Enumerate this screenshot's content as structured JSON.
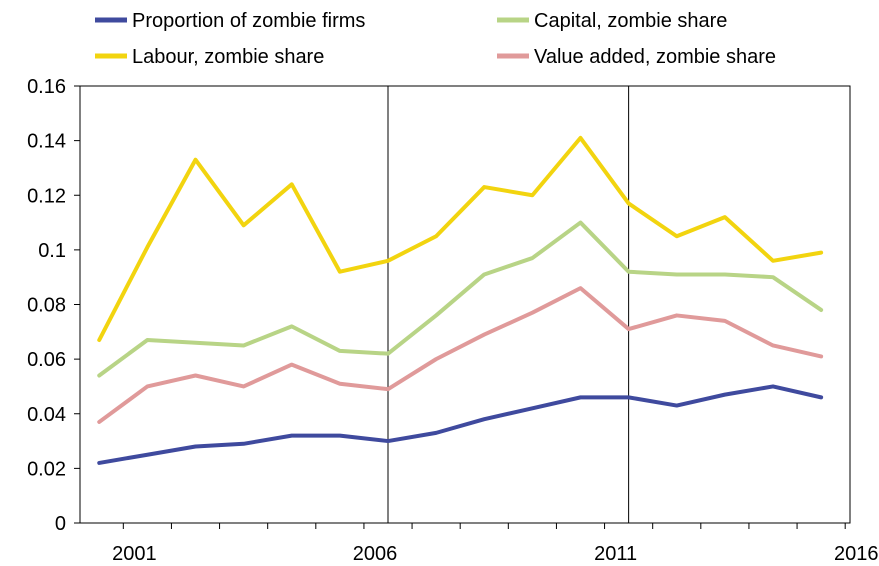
{
  "chart_data": {
    "type": "line",
    "x": [
      2000,
      2001,
      2002,
      2003,
      2004,
      2005,
      2006,
      2007,
      2008,
      2009,
      2010,
      2011,
      2012,
      2013,
      2014,
      2015
    ],
    "x_tick_labels": [
      "2001",
      "2006",
      "2011",
      "2016"
    ],
    "x_tick_values": [
      2001,
      2006,
      2011,
      2016
    ],
    "xlim": [
      1999.6,
      2015.6
    ],
    "ylim": [
      0,
      0.16
    ],
    "y_tick_values": [
      0,
      0.02,
      0.04,
      0.06,
      0.08,
      0.1,
      0.12,
      0.14,
      0.16
    ],
    "y_tick_labels": [
      "0",
      "0.02",
      "0.04",
      "0.06",
      "0.08",
      "0.1",
      "0.12",
      "0.14",
      "0.16"
    ],
    "grid": "vertical at 2006 and 2011",
    "legend": "top, two columns",
    "series": [
      {
        "name": "Proportion of zombie firms",
        "color": "#3f4a9e",
        "values": [
          0.022,
          0.025,
          0.028,
          0.029,
          0.032,
          0.032,
          0.03,
          0.033,
          0.038,
          0.042,
          0.046,
          0.046,
          0.043,
          0.047,
          0.05,
          0.046
        ]
      },
      {
        "name": "Capital, zombie share",
        "color": "#b8d486",
        "values": [
          0.054,
          0.067,
          0.066,
          0.065,
          0.072,
          0.063,
          0.062,
          0.076,
          0.091,
          0.097,
          0.11,
          0.092,
          0.091,
          0.091,
          0.09,
          0.078
        ]
      },
      {
        "name": "Labour, zombie share",
        "color": "#f2d40f",
        "values": [
          0.067,
          0.101,
          0.133,
          0.109,
          0.124,
          0.092,
          0.096,
          0.105,
          0.123,
          0.12,
          0.141,
          0.117,
          0.105,
          0.112,
          0.096,
          0.099
        ]
      },
      {
        "name": "Value added, zombie share",
        "color": "#e09a9a",
        "values": [
          0.037,
          0.05,
          0.054,
          0.05,
          0.058,
          0.051,
          0.049,
          0.06,
          0.069,
          0.077,
          0.086,
          0.071,
          0.076,
          0.074,
          0.065,
          0.061
        ]
      }
    ]
  }
}
